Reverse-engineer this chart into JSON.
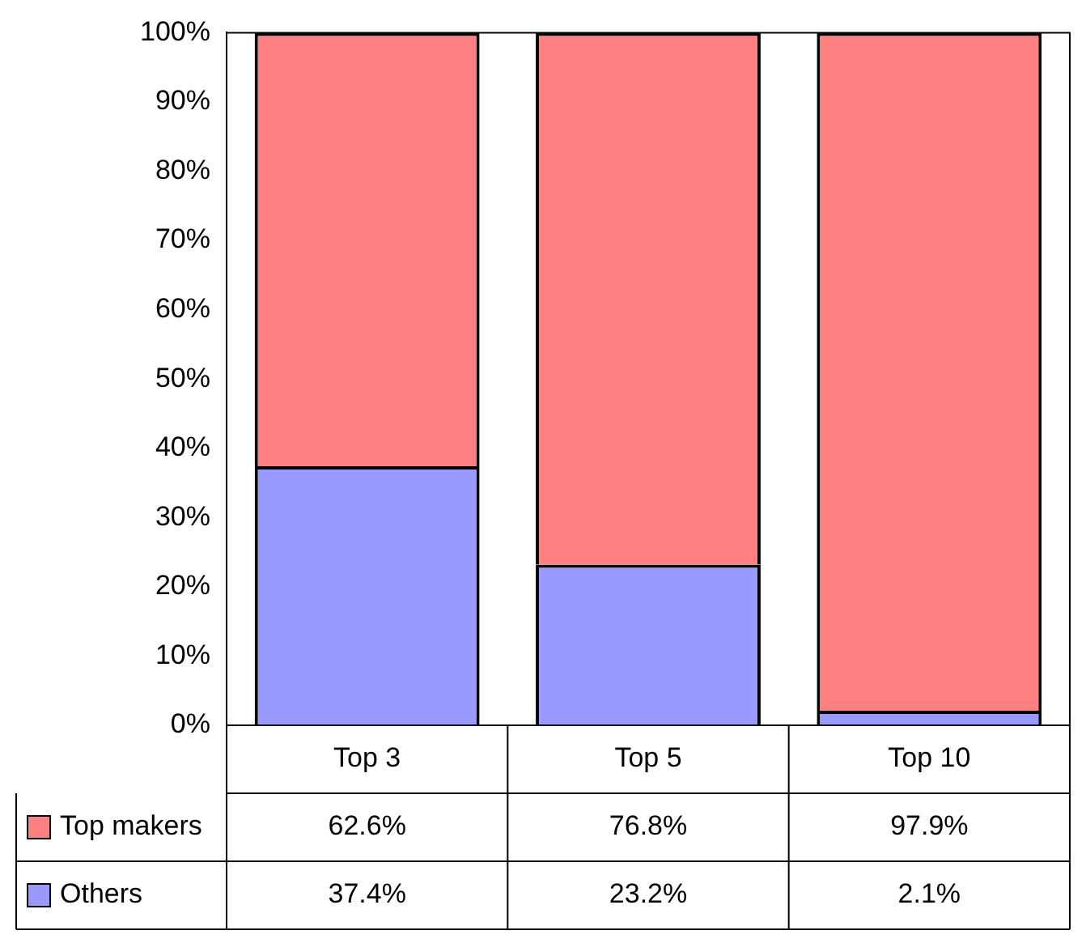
{
  "chart_data": {
    "type": "bar",
    "stacked": true,
    "categories": [
      "Top 3",
      "Top 5",
      "Top 10"
    ],
    "series": [
      {
        "name": "Others",
        "color": "#9999ff",
        "values": [
          37.4,
          23.2,
          2.1
        ],
        "value_labels": [
          "37.4%",
          "23.2%",
          "2.1%"
        ]
      },
      {
        "name": "Top makers",
        "color": "#ff8080",
        "values": [
          62.6,
          76.8,
          97.9
        ],
        "value_labels": [
          "62.6%",
          "76.8%",
          "97.9%"
        ]
      }
    ],
    "ylim": [
      0,
      100
    ],
    "yticks": [
      {
        "value": 0,
        "label": "0%"
      },
      {
        "value": 10,
        "label": "10%"
      },
      {
        "value": 20,
        "label": "20%"
      },
      {
        "value": 30,
        "label": "30%"
      },
      {
        "value": 40,
        "label": "40%"
      },
      {
        "value": 50,
        "label": "50%"
      },
      {
        "value": 60,
        "label": "60%"
      },
      {
        "value": 70,
        "label": "70%"
      },
      {
        "value": 80,
        "label": "80%"
      },
      {
        "value": 90,
        "label": "90%"
      },
      {
        "value": 100,
        "label": "100%"
      }
    ],
    "grid": false,
    "legend": "bottom"
  }
}
